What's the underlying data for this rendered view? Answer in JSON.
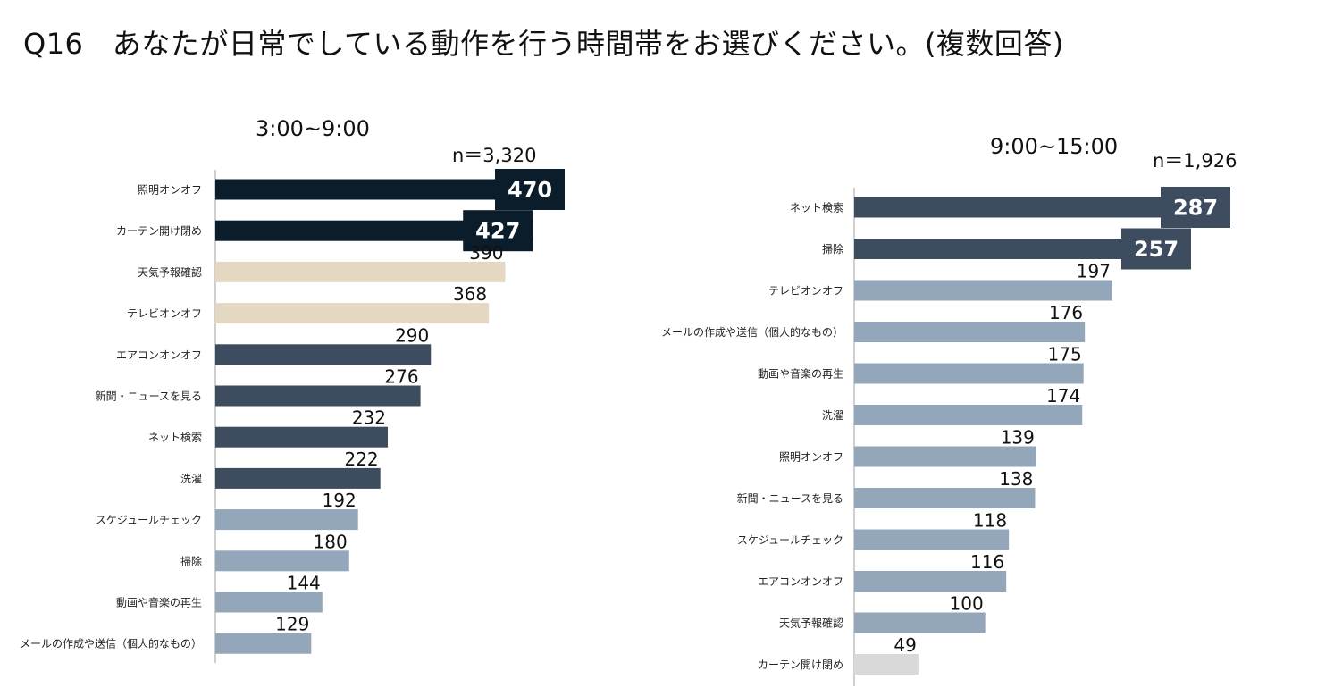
{
  "header": {
    "title": "Q16　あなたが日常でしている動作を行う時間帯をお選びください。(複数回答)"
  },
  "colors": {
    "navy": "#0b1c2a",
    "slate": "#3d4d5f",
    "steel": "#94a6b9",
    "beige": "#e5d8c2",
    "gray": "#d9d9d9",
    "axis": "#bfbfbf"
  },
  "chart_data": [
    {
      "type": "bar",
      "orientation": "horizontal",
      "title": "3:00~9:00",
      "sample_size": "n＝3,320",
      "categories": [
        "照明オンオフ",
        "カーテン開け閉め",
        "天気予報確認",
        "テレビオンオフ",
        "エアコンオンオフ",
        "新聞・ニュースを見る",
        "ネット検索",
        "洗濯",
        "スケジュールチェック",
        "掃除",
        "動画や音楽の再生",
        "メールの作成や送信（個人的なもの）"
      ],
      "values": [
        470,
        427,
        390,
        368,
        290,
        276,
        232,
        222,
        192,
        180,
        144,
        129
      ],
      "bar_colors": [
        "navy",
        "navy",
        "beige",
        "beige",
        "slate",
        "slate",
        "slate",
        "slate",
        "steel",
        "steel",
        "steel",
        "steel"
      ],
      "highlighted": [
        true,
        true,
        false,
        false,
        false,
        false,
        false,
        false,
        false,
        false,
        false,
        false
      ],
      "xlim": [
        0,
        470
      ]
    },
    {
      "type": "bar",
      "orientation": "horizontal",
      "title": "9:00~15:00",
      "sample_size": "n＝1,926",
      "categories": [
        "ネット検索",
        "掃除",
        "テレビオンオフ",
        "メールの作成や送信（個人的なもの）",
        "動画や音楽の再生",
        "洗濯",
        "照明オンオフ",
        "新聞・ニュースを見る",
        "スケジュールチェック",
        "エアコンオンオフ",
        "天気予報確認",
        "カーテン開け閉め"
      ],
      "values": [
        287,
        257,
        197,
        176,
        175,
        174,
        139,
        138,
        118,
        116,
        100,
        49
      ],
      "bar_colors": [
        "slate",
        "slate",
        "steel",
        "steel",
        "steel",
        "steel",
        "steel",
        "steel",
        "steel",
        "steel",
        "steel",
        "gray"
      ],
      "highlighted": [
        true,
        true,
        false,
        false,
        false,
        false,
        false,
        false,
        false,
        false,
        false,
        false
      ],
      "xlim": [
        0,
        287
      ]
    }
  ]
}
